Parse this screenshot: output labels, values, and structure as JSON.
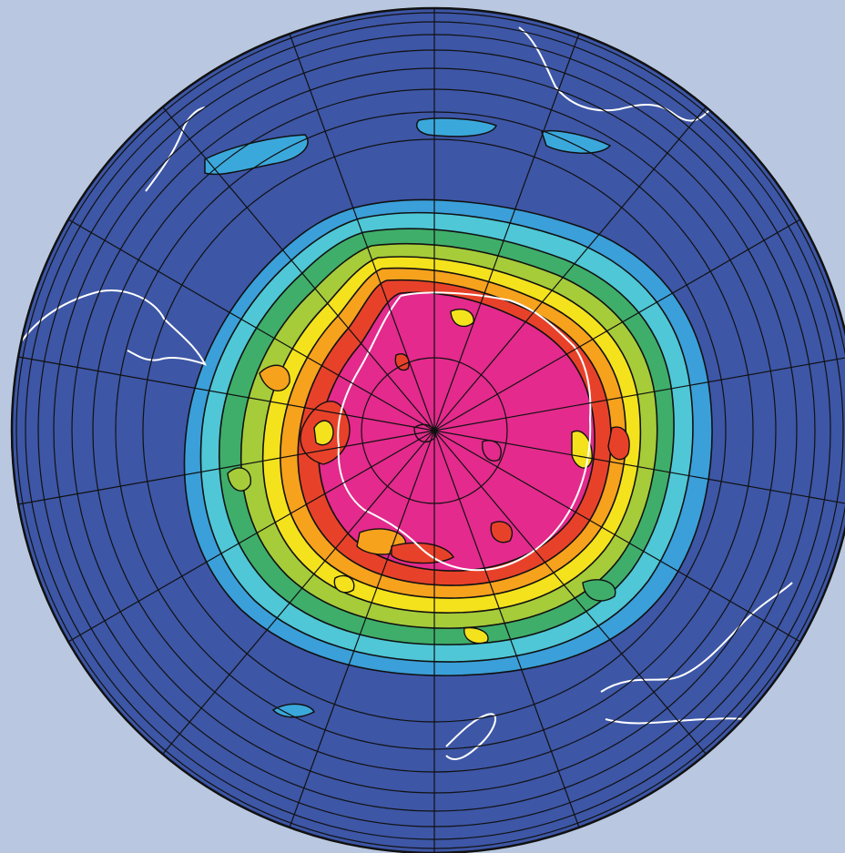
{
  "map": {
    "projection": "south-polar-stereographic",
    "graticule": {
      "meridian_spacing_deg": 20,
      "parallel_rings": 11
    },
    "colors": {
      "page_background": "#b9c8e0",
      "ocean_field": "#3d56a6",
      "graticule_lines": "#111111",
      "contour_lines": "#111111",
      "coastline": "#ffffff"
    },
    "color_levels": [
      {
        "name": "lowest",
        "color": "#3d56a6"
      },
      {
        "name": "level-2",
        "color": "#3b9fd9"
      },
      {
        "name": "level-3",
        "color": "#4fc7d6"
      },
      {
        "name": "level-4",
        "color": "#3fae6a"
      },
      {
        "name": "level-5",
        "color": "#a6cc3a"
      },
      {
        "name": "level-6",
        "color": "#f4e21d"
      },
      {
        "name": "level-7",
        "color": "#f6a21d"
      },
      {
        "name": "level-8",
        "color": "#e8412a"
      },
      {
        "name": "highest",
        "color": "#e42a8c"
      }
    ],
    "features": [
      "antarctica-coastline",
      "south-america-coastline",
      "australia-coastline",
      "africa-coastline",
      "new-zealand-coastline"
    ]
  }
}
